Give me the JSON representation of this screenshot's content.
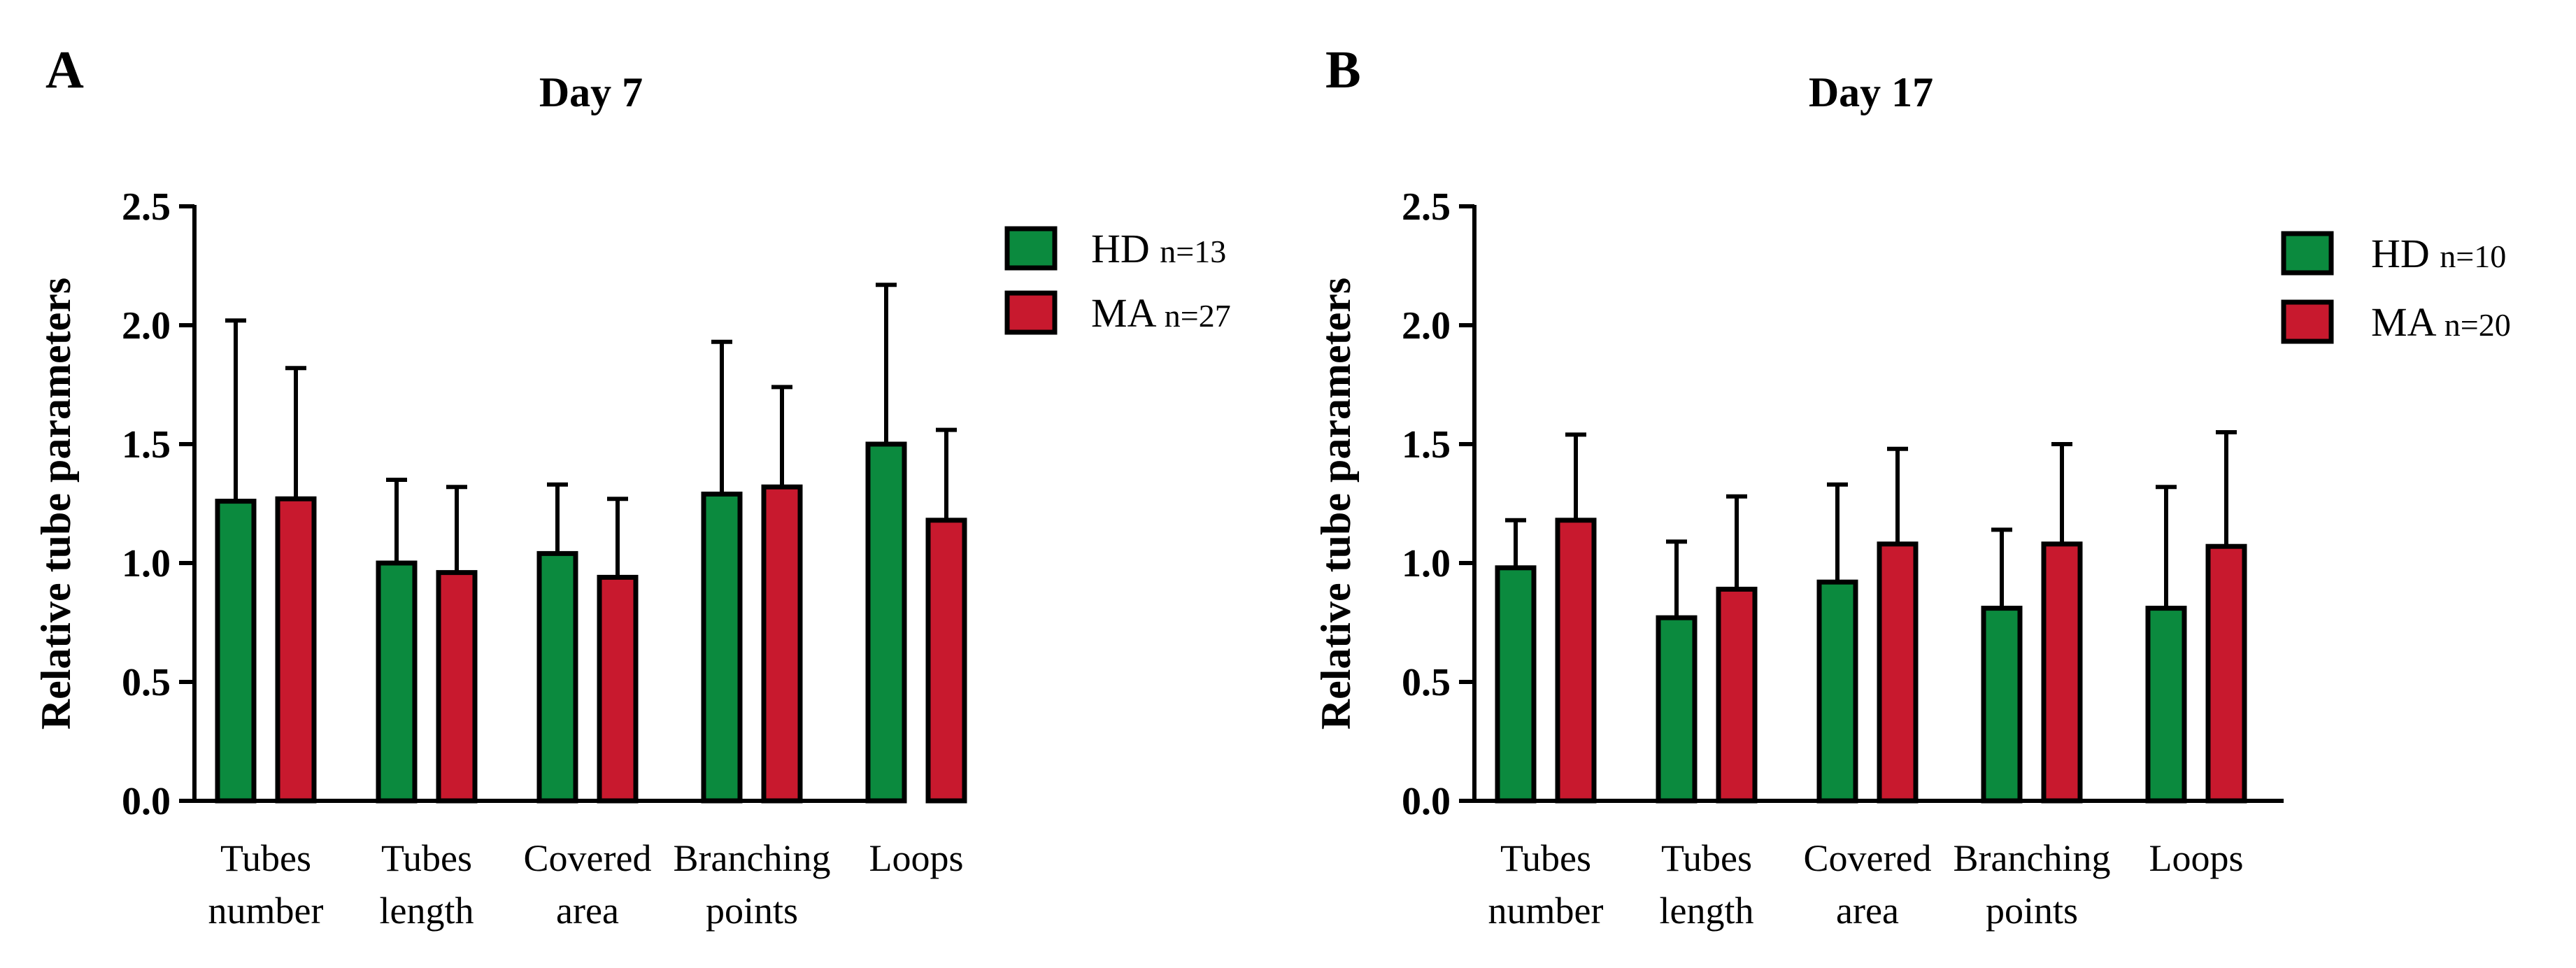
{
  "chart_data": [
    {
      "panel_letter": "A",
      "type": "bar",
      "title": "Day 7",
      "ylabel": "Relative tube parameters",
      "xlabel": "",
      "ylim": [
        0,
        2.5
      ],
      "yticks": [
        "0.0",
        "0.5",
        "1.0",
        "1.5",
        "2.0",
        "2.5"
      ],
      "categories": [
        [
          "Tubes",
          "number"
        ],
        [
          "Tubes",
          "length"
        ],
        [
          "Covered",
          "area"
        ],
        [
          "Branching",
          "points"
        ],
        [
          "Loops"
        ]
      ],
      "legend_position": "top-right",
      "series": [
        {
          "name": "HD",
          "n_label": "n=13",
          "color": "#0b8a3e",
          "values": [
            1.26,
            1.0,
            1.04,
            1.29,
            1.5
          ],
          "errors": [
            0.76,
            0.35,
            0.29,
            0.64,
            0.67
          ]
        },
        {
          "name": "MA",
          "n_label": "n=27",
          "color": "#c8192e",
          "values": [
            1.27,
            0.96,
            0.94,
            1.32,
            1.18
          ],
          "errors": [
            0.55,
            0.36,
            0.33,
            0.42,
            0.38
          ]
        }
      ]
    },
    {
      "panel_letter": "B",
      "type": "bar",
      "title": "Day 17",
      "ylabel": "Relative tube parameters",
      "xlabel": "",
      "ylim": [
        0,
        2.5
      ],
      "yticks": [
        "0.0",
        "0.5",
        "1.0",
        "1.5",
        "2.0",
        "2.5"
      ],
      "categories": [
        [
          "Tubes",
          "number"
        ],
        [
          "Tubes",
          "length"
        ],
        [
          "Covered",
          "area"
        ],
        [
          "Branching",
          "points"
        ],
        [
          "Loops"
        ]
      ],
      "legend_position": "top-right",
      "series": [
        {
          "name": "HD",
          "n_label": "n=10",
          "color": "#0b8a3e",
          "values": [
            0.98,
            0.77,
            0.92,
            0.81,
            0.81
          ],
          "errors": [
            0.2,
            0.32,
            0.41,
            0.33,
            0.51
          ]
        },
        {
          "name": "MA",
          "n_label": "n=20",
          "color": "#c8192e",
          "values": [
            1.18,
            0.89,
            1.08,
            1.08,
            1.07
          ],
          "errors": [
            0.36,
            0.39,
            0.4,
            0.42,
            0.48
          ]
        }
      ]
    }
  ]
}
